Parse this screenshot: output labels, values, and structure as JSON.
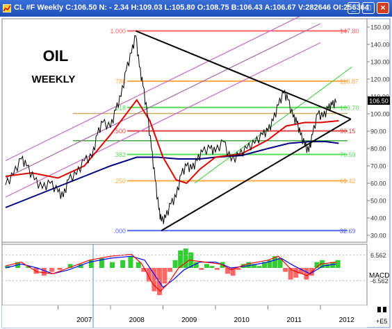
{
  "window": {
    "title": "CL #F Weekly C:106.50 N: - 2.34 H:109.03 L:105.80 O:108.75 B:106.43 A:106.67 V:282646 OI:256364",
    "buttons": [
      "minimize-icon",
      "maximize-icon",
      "close-icon"
    ]
  },
  "chart_data": [
    {
      "type": "line",
      "title": "OIL",
      "subtitle": "WEEKLY",
      "y_range": [
        30,
        150
      ],
      "y_ticks": [
        "150.00",
        "140.00",
        "130.00",
        "120.00",
        "110.00",
        "100.00",
        "90.00",
        "80.00",
        "70.00",
        "60.00",
        "50.00",
        "40.00",
        "30.00"
      ],
      "x_ticks": [
        "2007",
        "2008",
        "2009",
        "2010",
        "2011",
        "2012"
      ],
      "last_price_label": "106.50",
      "series_colors": {
        "price": "#000000",
        "ma_red": "#dd0000",
        "ma_blue": "#000080"
      },
      "price_path": [
        [
          2006.0,
          59
        ],
        [
          2006.15,
          65
        ],
        [
          2006.3,
          74
        ],
        [
          2006.4,
          70
        ],
        [
          2006.55,
          62
        ],
        [
          2006.7,
          57
        ],
        [
          2006.85,
          60
        ],
        [
          2007.0,
          55
        ],
        [
          2007.1,
          52
        ],
        [
          2007.2,
          62
        ],
        [
          2007.35,
          65
        ],
        [
          2007.5,
          73
        ],
        [
          2007.65,
          75
        ],
        [
          2007.75,
          88
        ],
        [
          2007.85,
          95
        ],
        [
          2008.0,
          92
        ],
        [
          2008.1,
          102
        ],
        [
          2008.2,
          110
        ],
        [
          2008.3,
          125
        ],
        [
          2008.4,
          135
        ],
        [
          2008.48,
          145
        ],
        [
          2008.55,
          127
        ],
        [
          2008.62,
          116
        ],
        [
          2008.7,
          100
        ],
        [
          2008.78,
          80
        ],
        [
          2008.85,
          62
        ],
        [
          2008.92,
          45
        ],
        [
          2008.97,
          38
        ],
        [
          2009.05,
          40
        ],
        [
          2009.15,
          48
        ],
        [
          2009.25,
          52
        ],
        [
          2009.35,
          65
        ],
        [
          2009.45,
          70
        ],
        [
          2009.55,
          68
        ],
        [
          2009.65,
          73
        ],
        [
          2009.75,
          78
        ],
        [
          2009.9,
          80
        ],
        [
          2010.0,
          78
        ],
        [
          2010.15,
          84
        ],
        [
          2010.3,
          73
        ],
        [
          2010.45,
          76
        ],
        [
          2010.6,
          80
        ],
        [
          2010.75,
          83
        ],
        [
          2010.9,
          88
        ],
        [
          2011.0,
          90
        ],
        [
          2011.1,
          96
        ],
        [
          2011.2,
          105
        ],
        [
          2011.3,
          112
        ],
        [
          2011.38,
          108
        ],
        [
          2011.48,
          98
        ],
        [
          2011.55,
          95
        ],
        [
          2011.62,
          88
        ],
        [
          2011.7,
          82
        ],
        [
          2011.78,
          78
        ],
        [
          2011.85,
          88
        ],
        [
          2011.95,
          100
        ],
        [
          2012.05,
          98
        ],
        [
          2012.15,
          103
        ],
        [
          2012.22,
          105
        ],
        [
          2012.3,
          106.5
        ]
      ],
      "ma_red_path": [
        [
          2006.0,
          64
        ],
        [
          2006.5,
          66
        ],
        [
          2007.0,
          63
        ],
        [
          2007.5,
          70
        ],
        [
          2008.0,
          88
        ],
        [
          2008.5,
          108
        ],
        [
          2008.75,
          96
        ],
        [
          2009.0,
          75
        ],
        [
          2009.25,
          62
        ],
        [
          2009.45,
          60
        ],
        [
          2009.7,
          68
        ],
        [
          2010.0,
          75
        ],
        [
          2010.5,
          77
        ],
        [
          2011.0,
          85
        ],
        [
          2011.35,
          93
        ],
        [
          2011.7,
          95
        ],
        [
          2012.0,
          95
        ],
        [
          2012.35,
          96
        ]
      ],
      "ma_blue_path": [
        [
          2006.0,
          46
        ],
        [
          2006.5,
          52
        ],
        [
          2007.0,
          58
        ],
        [
          2007.5,
          64
        ],
        [
          2008.0,
          70
        ],
        [
          2008.5,
          75
        ],
        [
          2008.9,
          75
        ],
        [
          2009.3,
          74
        ],
        [
          2009.7,
          74
        ],
        [
          2010.0,
          75
        ],
        [
          2010.5,
          76
        ],
        [
          2011.0,
          80
        ],
        [
          2011.4,
          83
        ],
        [
          2011.8,
          84
        ],
        [
          2012.1,
          84
        ],
        [
          2012.35,
          83
        ]
      ],
      "fib_levels": [
        {
          "ratio": "1.000",
          "value": "147.80",
          "price": 147.8,
          "color": "#ff6666"
        },
        {
          "ratio": ".786",
          "value": "118.87",
          "price": 118.87,
          "color": "#ffaa44"
        },
        {
          "ratio": ".618",
          "value": "103.70",
          "price": 103.7,
          "color": "#55dd55"
        },
        {
          "ratio": ".500",
          "value": "90.15",
          "price": 90.15,
          "color": "#dd4444"
        },
        {
          "ratio": ".382",
          "value": "76.59",
          "price": 76.59,
          "color": "#55dd55"
        },
        {
          "ratio": ".250",
          "value": "61.42",
          "price": 61.42,
          "color": "#ffaa44"
        },
        {
          "ratio": ".000",
          "value": "32.69",
          "price": 32.69,
          "color": "#5566ff"
        }
      ],
      "extra_hlines": [
        {
          "price": 84.5,
          "color": "#44aa44"
        },
        {
          "price": 100.2,
          "color": "#ccaa66"
        }
      ],
      "triangle": {
        "apex": [
          2012.58,
          97
        ],
        "top_from": [
          2008.48,
          147.8
        ],
        "bottom_from": [
          2008.97,
          32.69
        ]
      },
      "channel_lines": [
        {
          "from": [
            2006.0,
            63
          ],
          "to": [
            2012.0,
            152
          ],
          "color": "#aa66aa"
        },
        {
          "from": [
            2006.0,
            73
          ],
          "to": [
            2012.0,
            162
          ],
          "color": "#cc66cc"
        },
        {
          "from": [
            2006.0,
            52
          ],
          "to": [
            2012.0,
            141
          ],
          "color": "#cc66cc"
        }
      ],
      "green_trend": {
        "from": [
          2009.6,
          60
        ],
        "to": [
          2012.6,
          127
        ],
        "color": "#33cc33"
      }
    },
    {
      "type": "area",
      "title": "MACD",
      "y_ticks": [
        "6.562",
        "-6.562"
      ],
      "x_ticks": [
        "2007",
        "2008",
        "2009",
        "2010",
        "2011",
        "2012"
      ],
      "extra_label": "+E5",
      "histogram": [
        [
          2006.0,
          1
        ],
        [
          2006.2,
          3
        ],
        [
          2006.4,
          1
        ],
        [
          2006.55,
          -3
        ],
        [
          2006.7,
          -4
        ],
        [
          2006.85,
          -2
        ],
        [
          2007.0,
          -1
        ],
        [
          2007.2,
          2
        ],
        [
          2007.4,
          2
        ],
        [
          2007.6,
          4
        ],
        [
          2007.8,
          5
        ],
        [
          2008.0,
          3
        ],
        [
          2008.2,
          4
        ],
        [
          2008.35,
          6
        ],
        [
          2008.5,
          3
        ],
        [
          2008.6,
          -2
        ],
        [
          2008.7,
          -7
        ],
        [
          2008.8,
          -12
        ],
        [
          2008.9,
          -14
        ],
        [
          2009.0,
          -8
        ],
        [
          2009.1,
          -2
        ],
        [
          2009.2,
          4
        ],
        [
          2009.3,
          9
        ],
        [
          2009.4,
          10
        ],
        [
          2009.5,
          8
        ],
        [
          2009.6,
          3
        ],
        [
          2009.7,
          -1
        ],
        [
          2009.8,
          2
        ],
        [
          2009.9,
          1
        ],
        [
          2010.0,
          -1
        ],
        [
          2010.1,
          3
        ],
        [
          2010.2,
          -3
        ],
        [
          2010.3,
          -4
        ],
        [
          2010.4,
          -1
        ],
        [
          2010.5,
          2
        ],
        [
          2010.6,
          3
        ],
        [
          2010.7,
          2
        ],
        [
          2010.8,
          1
        ],
        [
          2010.9,
          3
        ],
        [
          2011.0,
          4
        ],
        [
          2011.1,
          6
        ],
        [
          2011.2,
          5
        ],
        [
          2011.3,
          -2
        ],
        [
          2011.4,
          -6
        ],
        [
          2011.5,
          -5
        ],
        [
          2011.6,
          -3
        ],
        [
          2011.7,
          -6
        ],
        [
          2011.8,
          -4
        ],
        [
          2011.9,
          3
        ],
        [
          2012.0,
          4
        ],
        [
          2012.1,
          2
        ],
        [
          2012.2,
          3
        ],
        [
          2012.3,
          4
        ]
      ],
      "macd_line": [
        [
          2006.0,
          1
        ],
        [
          2006.3,
          3
        ],
        [
          2006.6,
          -2
        ],
        [
          2006.9,
          -3
        ],
        [
          2007.2,
          0
        ],
        [
          2007.6,
          4
        ],
        [
          2008.0,
          6
        ],
        [
          2008.4,
          7
        ],
        [
          2008.6,
          2
        ],
        [
          2008.8,
          -8
        ],
        [
          2008.95,
          -12
        ],
        [
          2009.1,
          -8
        ],
        [
          2009.3,
          0
        ],
        [
          2009.5,
          4
        ],
        [
          2009.8,
          3
        ],
        [
          2010.1,
          2
        ],
        [
          2010.3,
          -1
        ],
        [
          2010.6,
          2
        ],
        [
          2011.0,
          4
        ],
        [
          2011.2,
          6
        ],
        [
          2011.45,
          -1
        ],
        [
          2011.75,
          -4
        ],
        [
          2012.0,
          2
        ],
        [
          2012.3,
          3
        ]
      ],
      "signal_line": [
        [
          2006.0,
          0
        ],
        [
          2006.3,
          2
        ],
        [
          2006.6,
          0
        ],
        [
          2006.9,
          -3
        ],
        [
          2007.2,
          -1
        ],
        [
          2007.6,
          3
        ],
        [
          2008.0,
          5
        ],
        [
          2008.4,
          6
        ],
        [
          2008.65,
          4
        ],
        [
          2008.85,
          -4
        ],
        [
          2009.0,
          -10
        ],
        [
          2009.2,
          -6
        ],
        [
          2009.4,
          -1
        ],
        [
          2009.7,
          3
        ],
        [
          2010.0,
          3
        ],
        [
          2010.3,
          0
        ],
        [
          2010.6,
          1
        ],
        [
          2011.0,
          3
        ],
        [
          2011.25,
          5
        ],
        [
          2011.5,
          1
        ],
        [
          2011.8,
          -3
        ],
        [
          2012.05,
          1
        ],
        [
          2012.3,
          2
        ]
      ],
      "colors": {
        "positive": "#33cc33",
        "negative": "#ff6666",
        "macd": "#ff0000",
        "signal": "#0000ff"
      }
    }
  ]
}
